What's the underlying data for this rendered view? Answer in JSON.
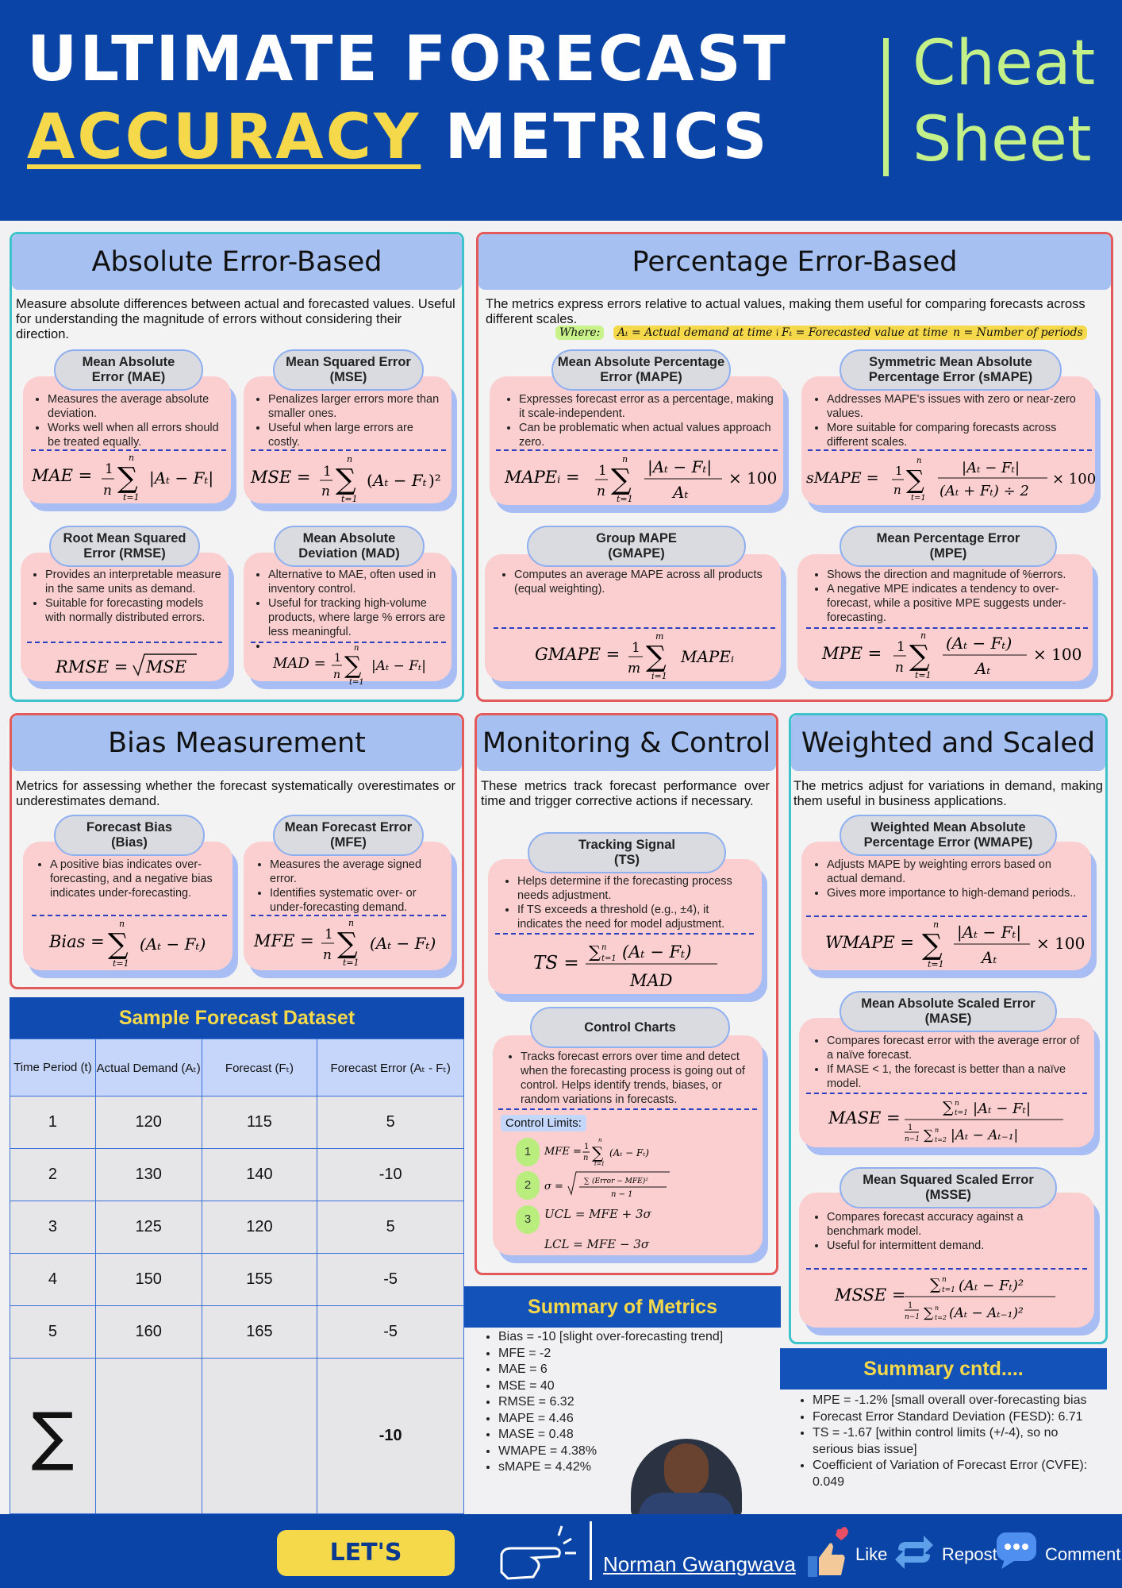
{
  "header": {
    "line1": "ULTIMATE FORECAST",
    "accent": "ACCURACY",
    "line2_rest": "METRICS",
    "cheat1": "Cheat",
    "cheat2": "Sheet"
  },
  "absolute": {
    "title": "Absolute Error-Based",
    "desc": "Measure absolute differences between actual and forecasted values. Useful for understanding the magnitude of errors without considering their direction.",
    "mae": {
      "name": [
        "Mean Absolute",
        "Error (MAE)"
      ],
      "bullets": [
        "Measures the average absolute deviation.",
        "Works well when all errors should be treated equally."
      ]
    },
    "mse": {
      "name": [
        "Mean Squared Error",
        "(MSE)"
      ],
      "bullets": [
        "Penalizes larger errors more than smaller ones.",
        "Useful when large errors are costly."
      ]
    },
    "rmse": {
      "name": [
        "Root Mean Squared",
        "Error (RMSE)"
      ],
      "bullets": [
        "Provides an interpretable measure in the same units as demand.",
        "Suitable for forecasting models with normally distributed errors."
      ]
    },
    "mad": {
      "name": [
        "Mean Absolute",
        "Deviation (MAD)"
      ],
      "bullets": [
        "Alternative to MAE, often used in inventory control.",
        "Useful for tracking high-volume products, where large % errors are less meaningful."
      ]
    }
  },
  "percentage": {
    "title": "Percentage Error-Based",
    "desc": "The metrics express errors relative to actual values, making them useful for comparing forecasts across different scales.",
    "where_label": "Where:",
    "where_items": [
      "Aₜ = Actual demand at time t",
      "Fₜ = Forecasted value at time t",
      "n = Number of periods"
    ],
    "mape": {
      "name": [
        "Mean Absolute Percentage",
        "Error (MAPE)"
      ],
      "bullets": [
        "Expresses forecast error as a percentage, making it scale-independent.",
        "Can be problematic when actual values approach zero."
      ]
    },
    "smape": {
      "name": [
        "Symmetric Mean Absolute",
        "Percentage Error (sMAPE)"
      ],
      "bullets": [
        "Addresses MAPE's issues with zero or near-zero values.",
        "More suitable for comparing forecasts across different scales."
      ]
    },
    "gmape": {
      "name": [
        "Group MAPE",
        "(GMAPE)"
      ],
      "bullets": [
        "Computes an average MAPE across all products (equal weighting)."
      ]
    },
    "mpe": {
      "name": [
        "Mean Percentage Error",
        "(MPE)"
      ],
      "bullets": [
        "Shows the direction and magnitude of %errors.",
        "A negative MPE indicates a tendency to over-forecast, while a positive MPE suggests under-forecasting."
      ]
    }
  },
  "bias": {
    "title": "Bias Measurement",
    "desc": "Metrics for assessing whether the forecast systematically overestimates or underestimates demand.",
    "fb": {
      "name": [
        "Forecast Bias",
        "(Bias)"
      ],
      "bullets": [
        "A positive bias indicates over-forecasting, and a negative bias indicates under-forecasting."
      ]
    },
    "mfe": {
      "name": [
        "Mean Forecast Error",
        "(MFE)"
      ],
      "bullets": [
        "Measures the average signed error.",
        "Identifies systematic over- or under-forecasting demand."
      ]
    }
  },
  "monitoring": {
    "title": "Monitoring & Control",
    "desc": "These metrics track forecast performance over time and trigger corrective actions if necessary.",
    "ts": {
      "name": [
        "Tracking Signal",
        "(TS)"
      ],
      "bullets": [
        "Helps determine if the forecasting process needs adjustment.",
        "If TS exceeds a threshold (e.g., ±4), it indicates the need for model adjustment."
      ]
    },
    "cc": {
      "name": [
        "Control Charts"
      ],
      "bullets": [
        "Tracks forecast errors over time and detect when the forecasting process is going out of control. Helps identify trends, biases, or random variations in forecasts."
      ]
    },
    "limits_label": "Control Limits:",
    "steps": [
      "1",
      "2",
      "3"
    ]
  },
  "weighted": {
    "title": "Weighted and Scaled",
    "desc": "The metrics adjust for variations in demand, making them useful in business applications.",
    "wmape": {
      "name": [
        "Weighted Mean Absolute",
        "Percentage Error (WMAPE)"
      ],
      "bullets": [
        "Adjusts MAPE by weighting errors based on actual demand.",
        "Gives more importance to high-demand periods.."
      ]
    },
    "mase": {
      "name": [
        "Mean Absolute Scaled Error",
        "(MASE)"
      ],
      "bullets": [
        "Compares forecast error with the average error of a naïve forecast.",
        "If MASE < 1, the forecast is better than a naïve model."
      ]
    },
    "msse": {
      "name": [
        "Mean Squared Scaled Error",
        "(MSSE)"
      ],
      "bullets": [
        "Compares forecast accuracy against a benchmark model.",
        "Useful for intermittent demand."
      ]
    }
  },
  "dataset": {
    "title": "Sample Forecast Dataset",
    "columns": [
      "Time Period (t)",
      "Actual Demand (Aₜ)",
      "Forecast (Fₜ)",
      "Forecast Error (Aₜ - Fₜ)"
    ],
    "rows": [
      [
        "1",
        "120",
        "115",
        "5"
      ],
      [
        "2",
        "130",
        "140",
        "-10"
      ],
      [
        "3",
        "125",
        "120",
        "5"
      ],
      [
        "4",
        "150",
        "155",
        "-5"
      ],
      [
        "5",
        "160",
        "165",
        "-5"
      ]
    ],
    "sum_symbol": "∑",
    "sum_value": "-10"
  },
  "summary": {
    "title": "Summary of Metrics",
    "items": [
      "Bias = -10 [slight over-forecasting trend]",
      "MFE = -2",
      "MAE = 6",
      "MSE = 40",
      "RMSE = 6.32",
      "MAPE = 4.46",
      "MASE = 0.48",
      "WMAPE = 4.38%",
      "sMAPE = 4.42%"
    ]
  },
  "summary2": {
    "title": "Summary cntd....",
    "items": [
      "MPE = -1.2% [small overall over-forecasting bias",
      "Forecast Error Standard Deviation (FESD): 6.71",
      "TS = -1.67 [within control limits (+/-4), so no serious bias issue]",
      "Coefficient of Variation of Forecast Error (CVFE): 0.049"
    ]
  },
  "footer": {
    "connect": "LET'S CONNECT",
    "author": "Norman Gwangwava",
    "like": "Like",
    "repost": "Repost",
    "comment": "Comment"
  },
  "colors": {
    "navy": "#0a44a6",
    "yellow": "#f6d94a",
    "green": "#c4f08a",
    "pink": "#fbcfcf",
    "lightblue": "#a6c1f1"
  }
}
